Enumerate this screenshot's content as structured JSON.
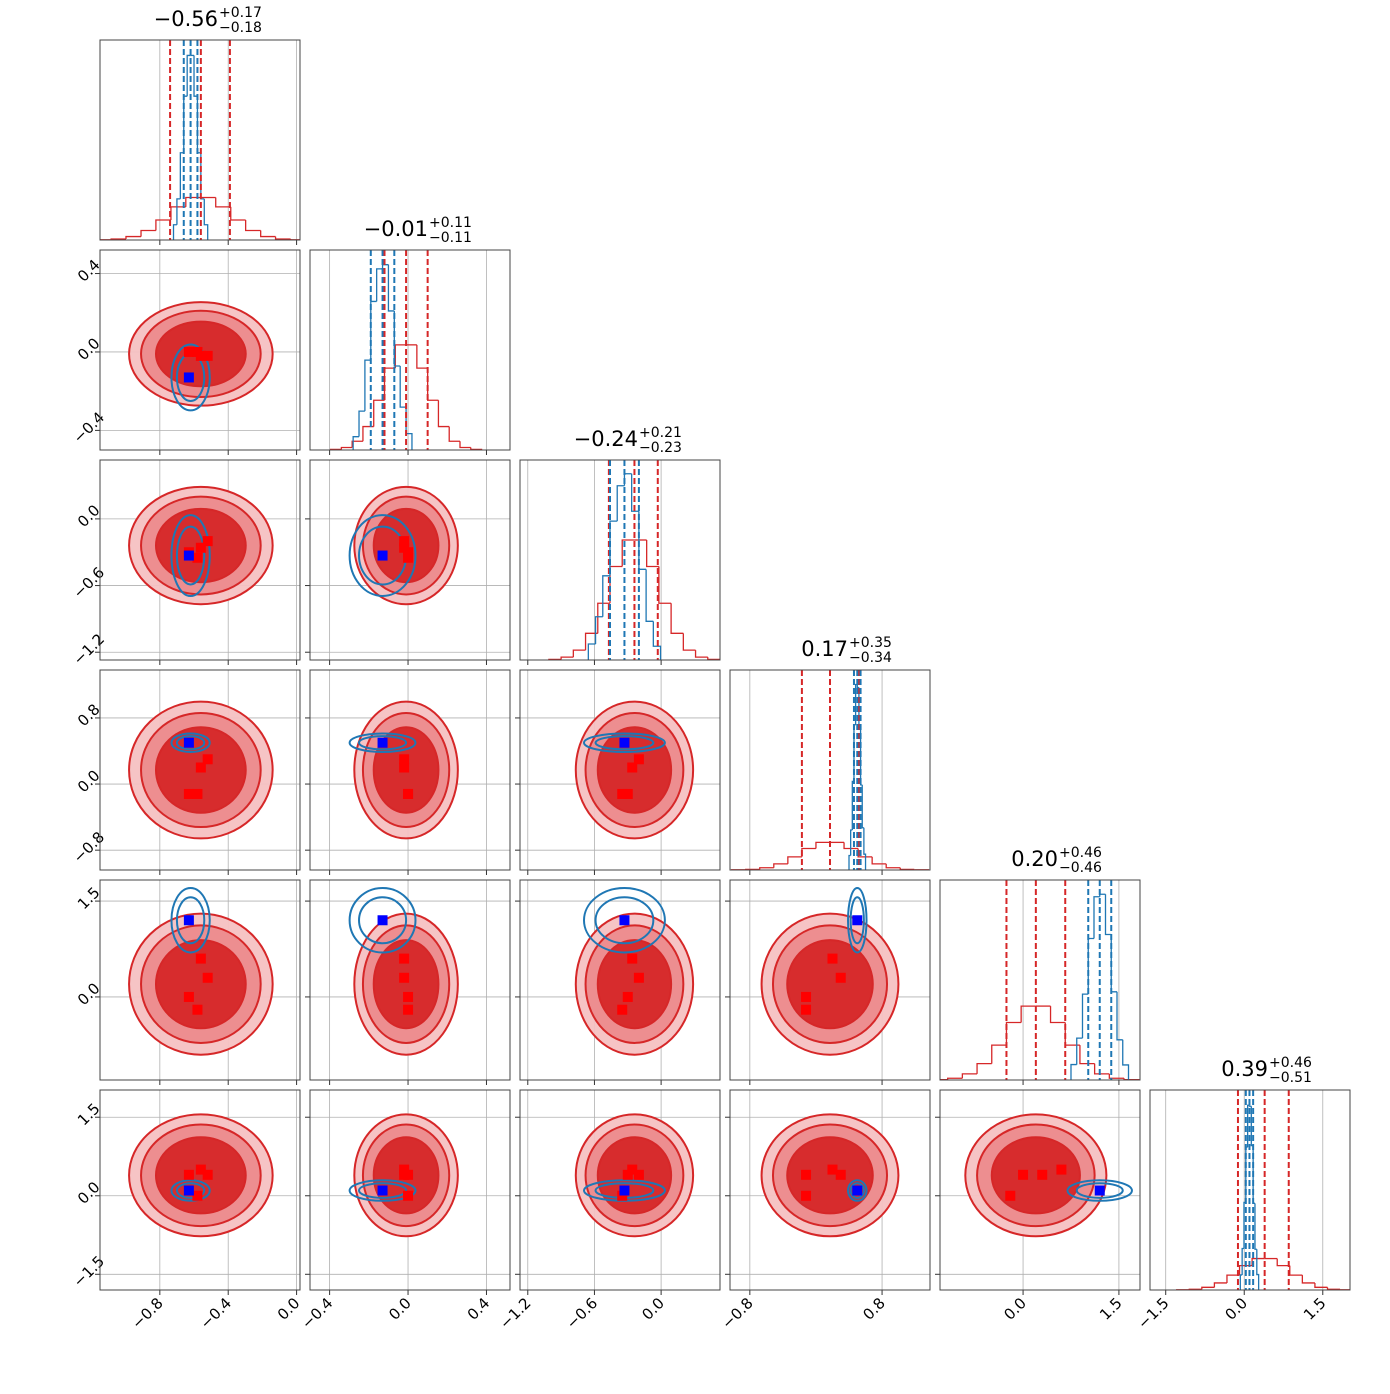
{
  "chart_data": {
    "type": "corner",
    "grid": true,
    "hist_ylim": [
      0,
      105
    ],
    "params": [
      {
        "title": {
          "value": "−0.56",
          "plus": "+0.17",
          "minus": "−0.18"
        },
        "lim": [
          -1.15,
          0.02
        ],
        "ticks": [
          {
            "value": -0.8,
            "label": "−0.8"
          },
          {
            "value": -0.4,
            "label": "−0.4"
          },
          {
            "value": 0,
            "label": "0.0"
          }
        ]
      },
      {
        "title": {
          "value": "−0.01",
          "plus": "+0.11",
          "minus": "−0.11"
        },
        "lim": [
          -0.5,
          0.52
        ],
        "ticks": [
          {
            "value": -0.4,
            "label": "−0.4"
          },
          {
            "value": 0,
            "label": "0.0"
          },
          {
            "value": 0.4,
            "label": "0.4"
          }
        ]
      },
      {
        "title": {
          "value": "−0.24",
          "plus": "+0.21",
          "minus": "−0.23"
        },
        "lim": [
          -1.27,
          0.53
        ],
        "ticks": [
          {
            "value": -1.2,
            "label": "−1.2"
          },
          {
            "value": -0.6,
            "label": "−0.6"
          },
          {
            "value": 0,
            "label": "0.0"
          }
        ]
      },
      {
        "title": {
          "value": "0.17",
          "plus": "+0.35",
          "minus": "−0.34"
        },
        "lim": [
          -1.04,
          1.38
        ],
        "ticks": [
          {
            "value": -0.8,
            "label": "−0.8"
          },
          {
            "value": 0,
            "label": "0.0"
          },
          {
            "value": 0.8,
            "label": "0.8"
          }
        ],
        "xticks": [
          {
            "value": -0.8,
            "label": "−0.8"
          },
          {
            "value": 0.8,
            "label": "0.8"
          }
        ]
      },
      {
        "title": {
          "value": "0.20",
          "plus": "+0.46",
          "minus": "−0.46"
        },
        "lim": [
          -1.3,
          1.83
        ],
        "ticks": [
          {
            "value": 0,
            "label": "0.0"
          },
          {
            "value": 1.5,
            "label": "1.5"
          }
        ]
      },
      {
        "title": {
          "value": "0.39",
          "plus": "+0.46",
          "minus": "−0.51"
        },
        "lim": [
          -1.8,
          2.02
        ],
        "ticks": [
          {
            "value": -1.5,
            "label": "−1.5"
          },
          {
            "value": 0,
            "label": "0.0"
          },
          {
            "value": 1.5,
            "label": "1.5"
          }
        ]
      }
    ],
    "series": [
      {
        "color": "#d62728",
        "quantiles": [
          [
            -0.74,
            -0.56,
            -0.39
          ],
          [
            -0.12,
            -0.01,
            0.1
          ],
          [
            -0.47,
            -0.24,
            -0.03
          ],
          [
            -0.17,
            0.17,
            0.52
          ],
          [
            -0.26,
            0.2,
            0.66
          ],
          [
            -0.12,
            0.39,
            0.85
          ]
        ],
        "hists": [
          {
            "bins": [
              -1.173,
              -1.085,
              -0.998,
              -0.91,
              -0.823,
              -0.735,
              -0.648,
              -0.56,
              -0.473,
              -0.385,
              -0.298,
              -0.21,
              -0.123,
              -0.035,
              0.053
            ],
            "counts": [
              0.1,
              0.5,
              1.8,
              5,
              10.5,
              17.4,
              22.3,
              22.3,
              17.4,
              10.5,
              5,
              1.8,
              0.5,
              0.1
            ]
          },
          {
            "bins": [
              -0.395,
              -0.34,
              -0.285,
              -0.23,
              -0.175,
              -0.12,
              -0.065,
              -0.01,
              0.045,
              0.1,
              0.155,
              0.21,
              0.265,
              0.32,
              0.375
            ],
            "counts": [
              0.3,
              1.3,
              4.6,
              12.3,
              26.1,
              43,
              55.2,
              55.2,
              43,
              26.1,
              12.3,
              4.6,
              1.3,
              0.3
            ]
          },
          {
            "bins": [
              -1.01,
              -0.9,
              -0.79,
              -0.68,
              -0.57,
              -0.46,
              -0.35,
              -0.24,
              -0.13,
              -0.02,
              0.09,
              0.2,
              0.31,
              0.42,
              0.53
            ],
            "counts": [
              0.3,
              1.5,
              5.2,
              14,
              29.8,
              49.1,
              63,
              63,
              49.1,
              29.8,
              14,
              5.2,
              1.5,
              0.3
            ]
          },
          {
            "bins": [
              -1.02,
              -0.85,
              -0.68,
              -0.51,
              -0.34,
              -0.17,
              0,
              0.17,
              0.34,
              0.51,
              0.68,
              0.85,
              1.02,
              1.19,
              1.36
            ],
            "counts": [
              0.1,
              0.3,
              1.2,
              3.2,
              6.9,
              11.3,
              14.5,
              14.5,
              11.3,
              6.9,
              3.2,
              1.2,
              0.3,
              0.1
            ]
          },
          {
            "bins": [
              -1.41,
              -1.18,
              -0.95,
              -0.72,
              -0.49,
              -0.26,
              -0.03,
              0.2,
              0.43,
              0.66,
              0.89,
              1.12,
              1.35,
              1.58,
              1.81
            ],
            "counts": [
              0.2,
              0.9,
              3.2,
              8.6,
              18.3,
              30.2,
              38.8,
              38.8,
              30.2,
              18.3,
              8.6,
              3.2,
              0.9,
              0.2
            ]
          },
          {
            "bins": [
              -1.29,
              -1.05,
              -0.81,
              -0.57,
              -0.33,
              -0.09,
              0.15,
              0.39,
              0.63,
              0.87,
              1.11,
              1.35,
              1.59,
              1.83,
              2.07
            ],
            "counts": [
              0.1,
              0.4,
              1.4,
              3.7,
              7.8,
              12.8,
              16.5,
              16.5,
              12.8,
              7.8,
              3.7,
              1.4,
              0.4,
              0.1
            ]
          }
        ]
      },
      {
        "color": "#1f77b4",
        "quantiles": [
          [
            -0.66,
            -0.62,
            -0.58
          ],
          [
            -0.19,
            -0.13,
            -0.07
          ],
          [
            -0.46,
            -0.33,
            -0.2
          ],
          [
            0.46,
            0.5,
            0.54
          ],
          [
            1.02,
            1.2,
            1.38
          ],
          [
            0.03,
            0.1,
            0.17
          ]
        ],
        "hists": [
          {
            "bins": [
              -0.72,
              -0.7,
              -0.68,
              -0.66,
              -0.64,
              -0.62,
              -0.6,
              -0.58,
              -0.56,
              -0.54,
              -0.52
            ],
            "counts": [
              8,
              21.6,
              45.8,
              75.5,
              96.9,
              96.9,
              75.5,
              45.8,
              21.6,
              8
            ]
          },
          {
            "bins": [
              -0.28,
              -0.25,
              -0.22,
              -0.19,
              -0.16,
              -0.13,
              -0.1,
              -0.07,
              -0.04,
              -0.01,
              0.02
            ],
            "counts": [
              7,
              20.4,
              47.2,
              78,
              95.1,
              97.3,
              73,
              44.1,
              22.5,
              8.6
            ]
          },
          {
            "bins": [
              -0.655,
              -0.59,
              -0.525,
              -0.46,
              -0.395,
              -0.33,
              -0.265,
              -0.2,
              -0.135,
              -0.07,
              -0.005
            ],
            "counts": [
              8.4,
              22.7,
              44.2,
              72.9,
              91.5,
              97.8,
              78.1,
              47.6,
              20.3,
              7.2
            ]
          },
          {
            "bins": [
              0.4,
              0.42,
              0.44,
              0.46,
              0.48,
              0.5,
              0.52,
              0.54,
              0.56,
              0.58,
              0.6
            ],
            "counts": [
              7.6,
              21,
              46.5,
              76.2,
              97.4,
              95.8,
              74.9,
              44.7,
              22.2,
              8.3
            ]
          },
          {
            "bins": [
              0.75,
              0.84,
              0.93,
              1.02,
              1.11,
              1.2,
              1.29,
              1.38,
              1.47,
              1.56,
              1.65
            ],
            "counts": [
              8.1,
              22,
              45.1,
              74.3,
              96.2,
              97.5,
              76.4,
              46.3,
              21.1,
              7.9
            ]
          },
          {
            "bins": [
              -0.075,
              -0.04,
              -0.005,
              0.03,
              0.065,
              0.1,
              0.135,
              0.17,
              0.205,
              0.24,
              0.275
            ],
            "counts": [
              7.9,
              21.8,
              46,
              75,
              97,
              96.5,
              75.8,
              45.5,
              21.4,
              8.1
            ]
          }
        ]
      }
    ],
    "truth": {
      "color": "#0000ff",
      "values": [
        -0.63,
        -0.13,
        -0.33,
        0.5,
        1.2,
        0.1
      ]
    },
    "points": {
      "color": "#ff0000",
      "values": [
        [
          -0.56,
          -0.02,
          -0.26,
          0.2,
          0.6,
          0.5
        ],
        [
          -0.52,
          -0.02,
          -0.2,
          0.3,
          0.3,
          0.4
        ],
        [
          -0.63,
          0.0,
          -0.3,
          -0.12,
          0.0,
          0.4
        ],
        [
          -0.58,
          0.0,
          -0.35,
          -0.12,
          -0.2,
          0.0
        ]
      ]
    }
  }
}
